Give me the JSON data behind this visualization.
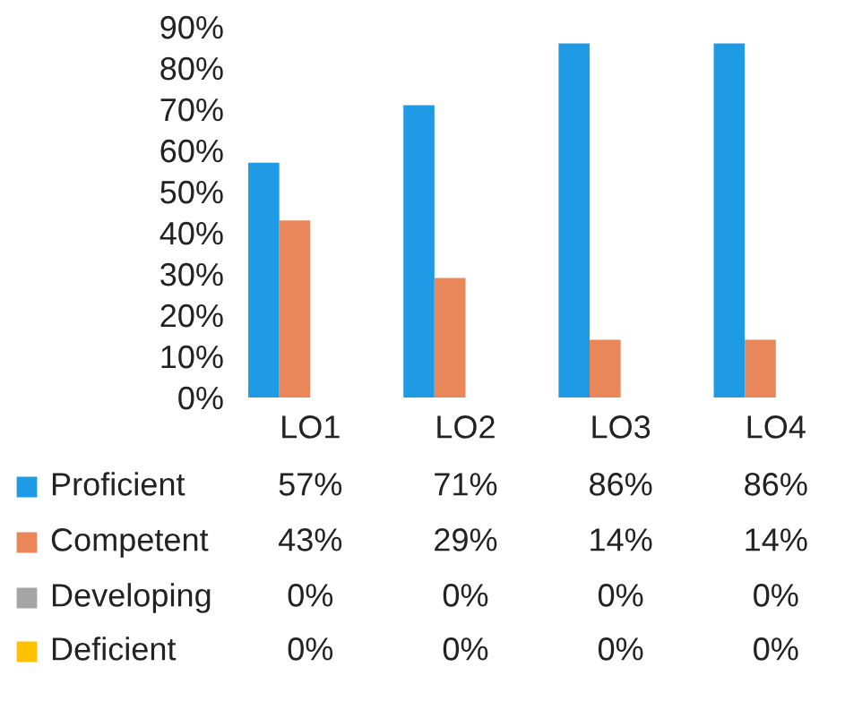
{
  "chart_data": {
    "type": "bar",
    "categories": [
      "LO1",
      "LO2",
      "LO3",
      "LO4"
    ],
    "series": [
      {
        "name": "Proficient",
        "color": "#1f9be6",
        "values": [
          57,
          71,
          86,
          86
        ],
        "value_labels": [
          "57%",
          "71%",
          "86%",
          "86%"
        ]
      },
      {
        "name": "Competent",
        "color": "#e9875a",
        "values": [
          43,
          29,
          14,
          14
        ],
        "value_labels": [
          "43%",
          "29%",
          "14%",
          "14%"
        ]
      },
      {
        "name": "Developing",
        "color": "#a5a5a5",
        "values": [
          0,
          0,
          0,
          0
        ],
        "value_labels": [
          "0%",
          "0%",
          "0%",
          "0%"
        ]
      },
      {
        "name": "Deficient",
        "color": "#ffc000",
        "values": [
          0,
          0,
          0,
          0
        ],
        "value_labels": [
          "0%",
          "0%",
          "0%",
          "0%"
        ]
      }
    ],
    "ylim": [
      0,
      90
    ],
    "yticks": [
      {
        "value": 0,
        "label": "0%"
      },
      {
        "value": 10,
        "label": "10%"
      },
      {
        "value": 20,
        "label": "20%"
      },
      {
        "value": 30,
        "label": "30%"
      },
      {
        "value": 40,
        "label": "40%"
      },
      {
        "value": 50,
        "label": "50%"
      },
      {
        "value": 60,
        "label": "60%"
      },
      {
        "value": 70,
        "label": "70%"
      },
      {
        "value": 80,
        "label": "80%"
      },
      {
        "value": 90,
        "label": "90%"
      }
    ],
    "grid": false,
    "legend": "bottom"
  }
}
